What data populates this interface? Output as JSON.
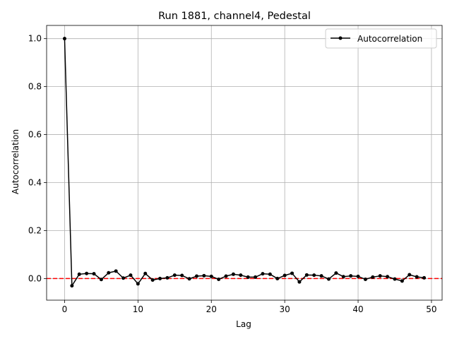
{
  "chart_data": {
    "type": "line",
    "title": "Run 1881, channel4, Pedestal",
    "xlabel": "Lag",
    "ylabel": "Autocorrelation",
    "xlim": [
      -2.45,
      51.45
    ],
    "ylim": [
      -0.09,
      1.055
    ],
    "xticks": [
      0,
      10,
      20,
      30,
      40,
      50
    ],
    "xtick_labels": [
      "0",
      "10",
      "20",
      "30",
      "40",
      "50"
    ],
    "yticks": [
      0.0,
      0.2,
      0.4,
      0.6,
      0.8,
      1.0
    ],
    "ytick_labels": [
      "0.0",
      "0.2",
      "0.4",
      "0.6",
      "0.8",
      "1.0"
    ],
    "grid": true,
    "legend_position": "top-right",
    "series": [
      {
        "name": "Autocorrelation",
        "color": "#000000",
        "marker": "dot",
        "x": [
          0,
          1,
          2,
          3,
          4,
          5,
          6,
          7,
          8,
          9,
          10,
          11,
          12,
          13,
          14,
          15,
          16,
          17,
          18,
          19,
          20,
          21,
          22,
          23,
          24,
          25,
          26,
          27,
          28,
          29,
          30,
          31,
          32,
          33,
          34,
          35,
          36,
          37,
          38,
          39,
          40,
          41,
          42,
          43,
          44,
          45,
          46,
          47,
          48,
          49
        ],
        "values": [
          1.0,
          -0.03,
          0.018,
          0.021,
          0.02,
          -0.004,
          0.024,
          0.031,
          0.002,
          0.014,
          -0.022,
          0.021,
          -0.006,
          0.0,
          0.003,
          0.014,
          0.013,
          -0.001,
          0.01,
          0.012,
          0.009,
          -0.003,
          0.01,
          0.018,
          0.014,
          0.006,
          0.006,
          0.02,
          0.018,
          0.0,
          0.013,
          0.022,
          -0.014,
          0.015,
          0.014,
          0.011,
          -0.002,
          0.023,
          0.008,
          0.011,
          0.009,
          -0.003,
          0.006,
          0.011,
          0.008,
          -0.002,
          -0.01,
          0.016,
          0.007,
          0.003
        ]
      }
    ],
    "reference_line": {
      "y": 0.0,
      "color": "#ff0000",
      "style": "dashed"
    }
  }
}
